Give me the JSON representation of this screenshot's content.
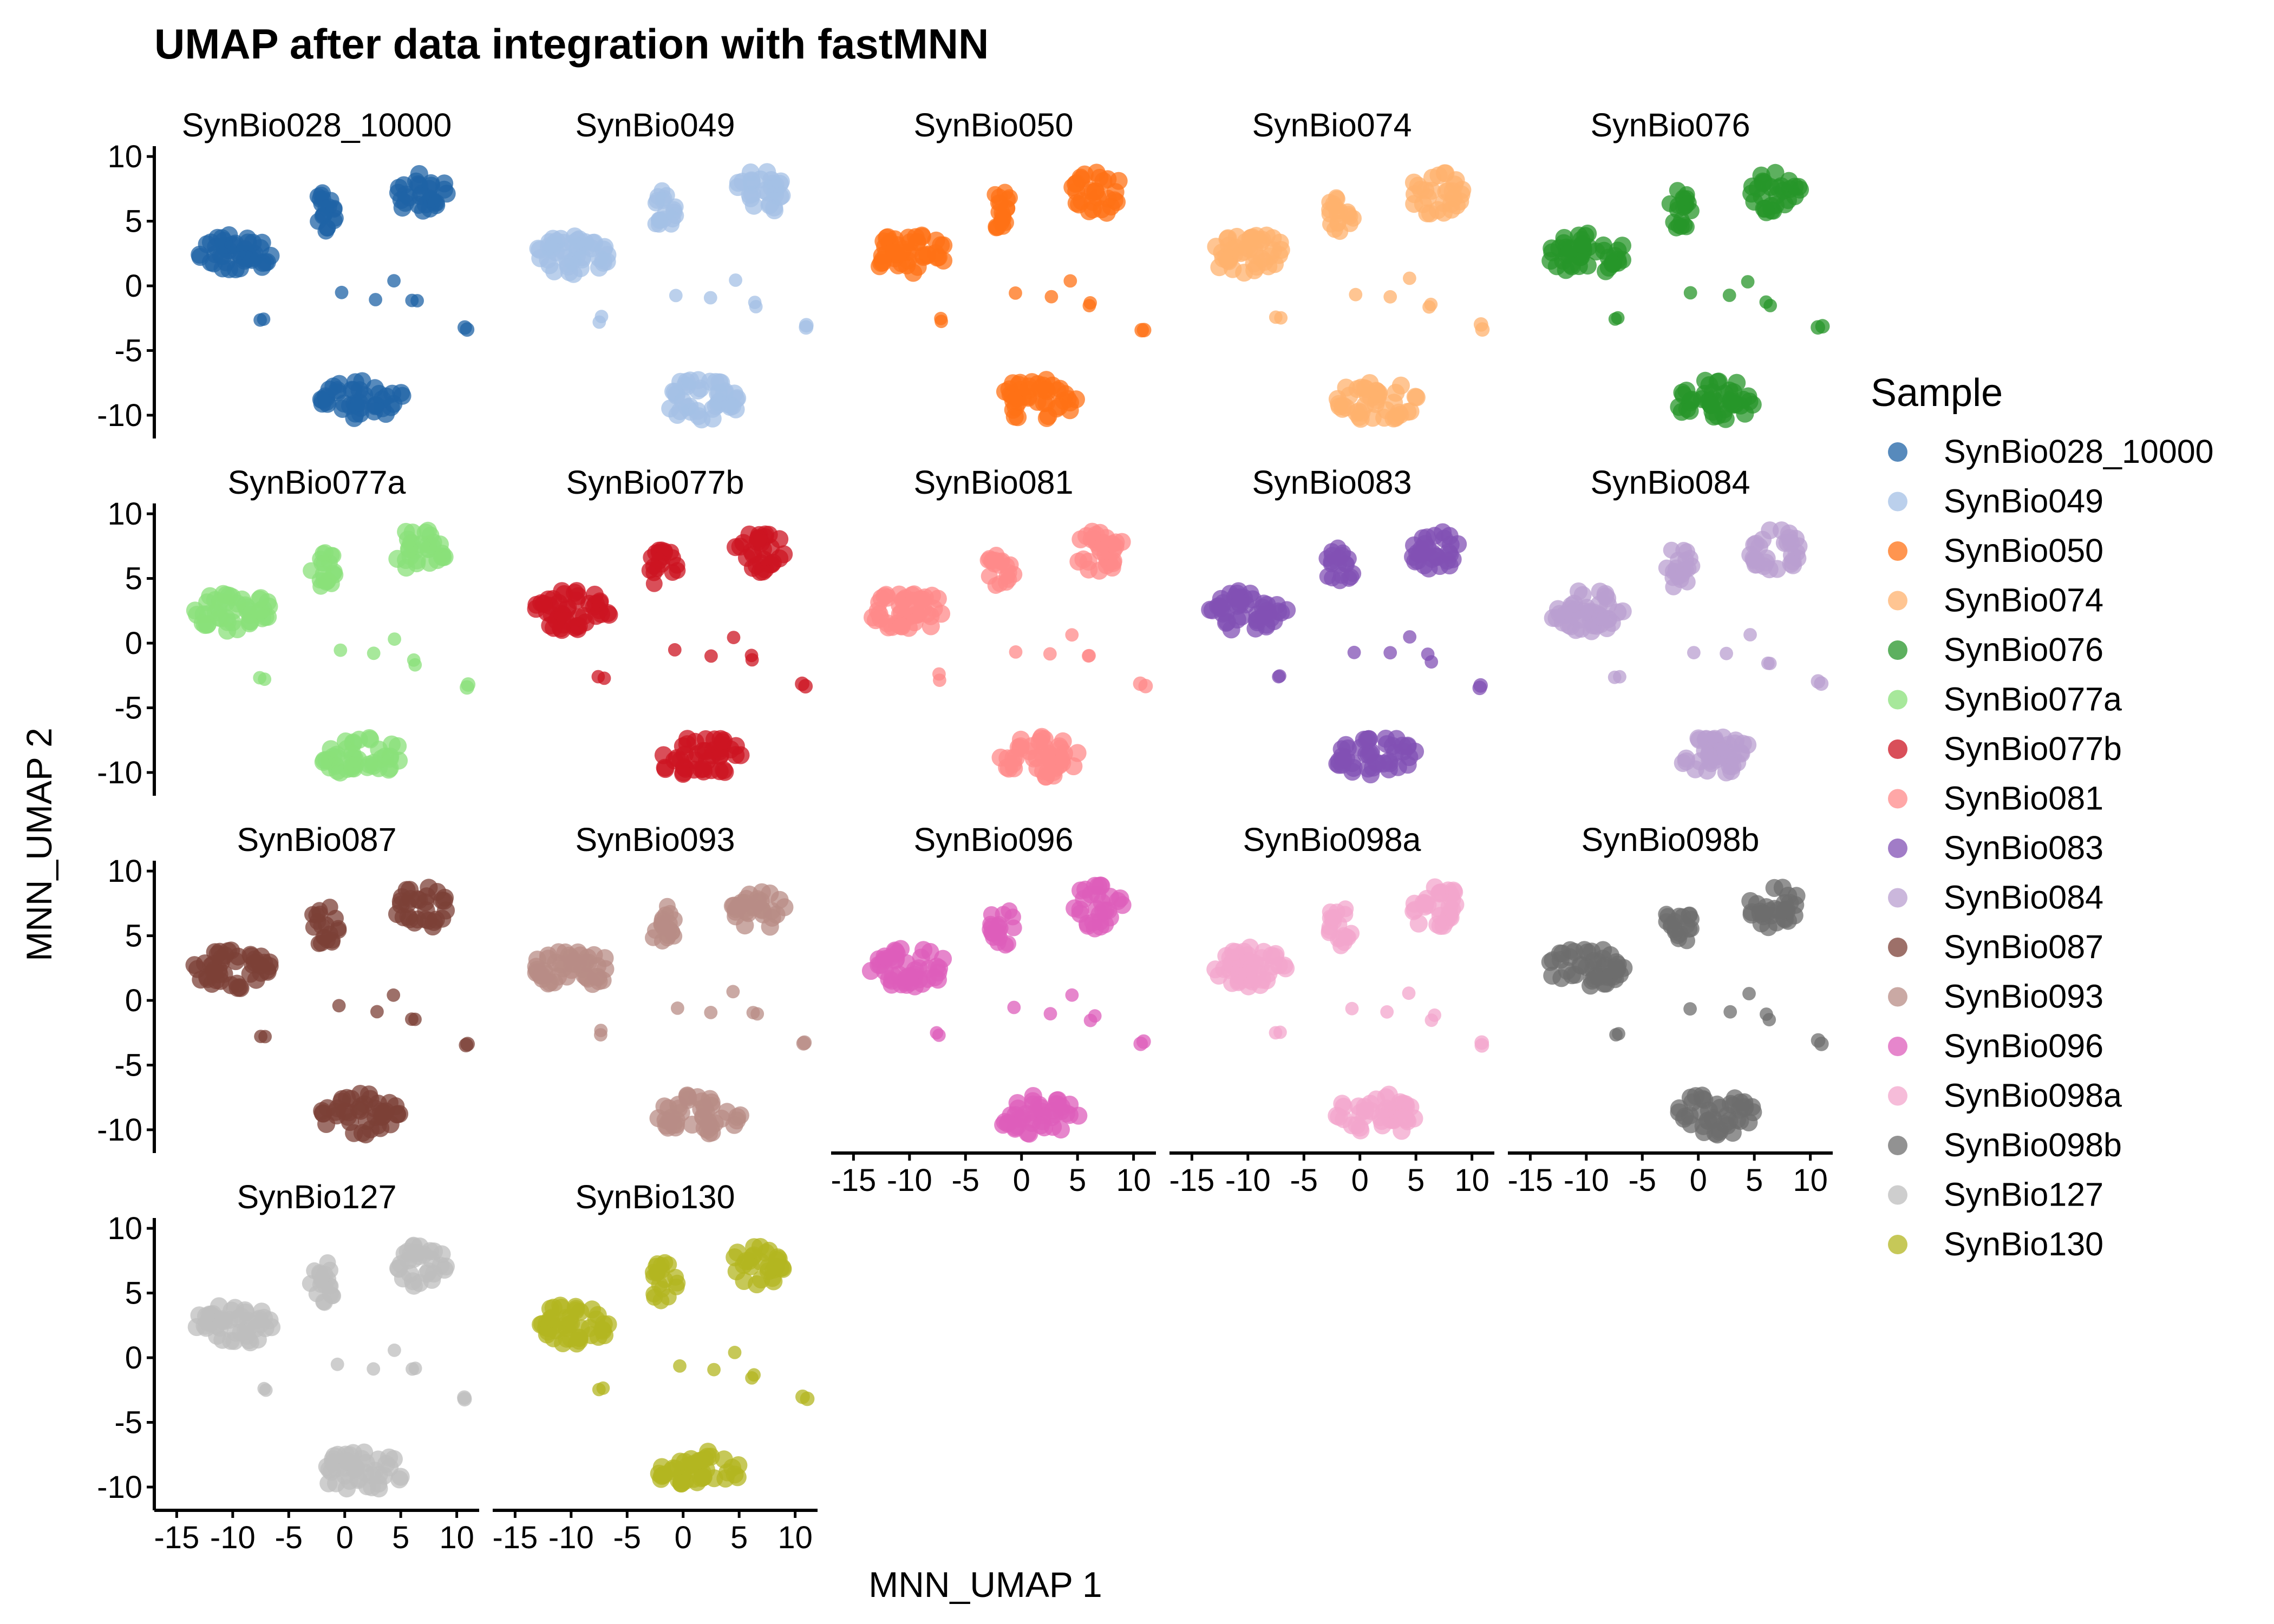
{
  "chart_data": {
    "type": "scatter",
    "title": "UMAP after data integration with fastMNN",
    "xlabel": "MNN_UMAP 1",
    "ylabel": "MNN_UMAP 2",
    "xlim": [
      -17,
      12
    ],
    "ylim": [
      -11.8,
      10.8
    ],
    "xticks": [
      -15,
      -10,
      -5,
      0,
      5,
      10
    ],
    "xtick_labels": [
      "-15",
      "-10",
      "-5",
      "0",
      "5",
      "10"
    ],
    "yticks": [
      10,
      5,
      0,
      -5,
      -10
    ],
    "ytick_labels": [
      "10",
      "5",
      "0",
      "-5",
      "-10"
    ],
    "grid": false,
    "legend_position": "right",
    "legend_title": "Sample",
    "clusters": [
      {
        "x": -10,
        "y": 2.5,
        "rx": 3.5,
        "ry": 1.6,
        "n": 46,
        "r": 0.8
      },
      {
        "x": -1.8,
        "y": 5.8,
        "rx": 1.3,
        "ry": 1.6,
        "n": 20,
        "r": 0.75
      },
      {
        "x": 6.8,
        "y": 7.2,
        "rx": 2.4,
        "ry": 1.7,
        "n": 30,
        "r": 0.8
      },
      {
        "x": 1.5,
        "y": -8.8,
        "rx": 3.8,
        "ry": 1.6,
        "n": 44,
        "r": 0.8
      },
      {
        "x": -7.3,
        "y": -2.6,
        "rx": 0.3,
        "ry": 0.3,
        "n": 2,
        "r": 0.6
      },
      {
        "x": 10.8,
        "y": -3.2,
        "rx": 0.3,
        "ry": 0.3,
        "n": 2,
        "r": 0.65
      },
      {
        "x": 6.3,
        "y": -1.2,
        "rx": 0.4,
        "ry": 0.5,
        "n": 2,
        "r": 0.6
      },
      {
        "x": -0.5,
        "y": -0.6,
        "rx": 0.3,
        "ry": 0.2,
        "n": 1,
        "r": 0.6
      },
      {
        "x": 2.7,
        "y": -0.9,
        "rx": 0.3,
        "ry": 0.2,
        "n": 1,
        "r": 0.6
      },
      {
        "x": 4.5,
        "y": 0.5,
        "rx": 0.2,
        "ry": 0.2,
        "n": 1,
        "r": 0.6
      }
    ],
    "series": [
      {
        "name": "SynBio028_10000",
        "color": "#1F63A6"
      },
      {
        "name": "SynBio049",
        "color": "#A4C0E6"
      },
      {
        "name": "SynBio050",
        "color": "#FF7216"
      },
      {
        "name": "SynBio074",
        "color": "#FFB26E"
      },
      {
        "name": "SynBio076",
        "color": "#27962A"
      },
      {
        "name": "SynBio077a",
        "color": "#8AE07A"
      },
      {
        "name": "SynBio077b",
        "color": "#CC1421"
      },
      {
        "name": "SynBio081",
        "color": "#FF8A8A"
      },
      {
        "name": "SynBio083",
        "color": "#8250B4"
      },
      {
        "name": "SynBio084",
        "color": "#B99FD0"
      },
      {
        "name": "SynBio087",
        "color": "#7C4037"
      },
      {
        "name": "SynBio093",
        "color": "#B88C85"
      },
      {
        "name": "SynBio096",
        "color": "#DD5DBB"
      },
      {
        "name": "SynBio098a",
        "color": "#F3A6CC"
      },
      {
        "name": "SynBio098b",
        "color": "#6E6E6E"
      },
      {
        "name": "SynBio127",
        "color": "#BDBDBD"
      },
      {
        "name": "SynBio130",
        "color": "#B3B520"
      }
    ]
  }
}
